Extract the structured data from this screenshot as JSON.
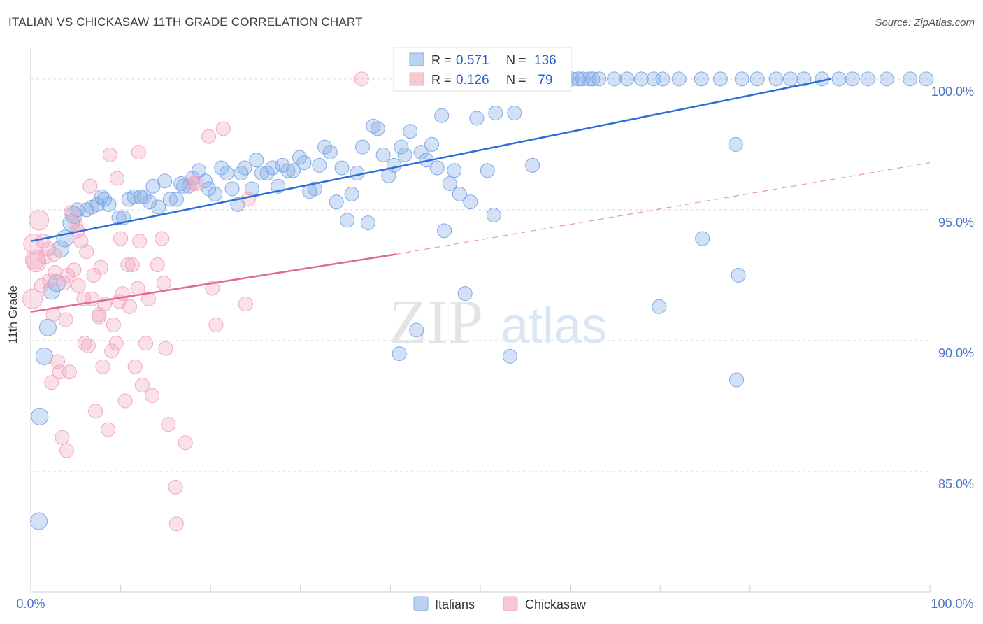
{
  "title": "ITALIAN VS CHICKASAW 11TH GRADE CORRELATION CHART",
  "source": "Source: ZipAtlas.com",
  "watermark": {
    "zip": "ZIP",
    "atlas": "atlas"
  },
  "chart_data": {
    "type": "scatter",
    "ylabel": "11th Grade",
    "xlim": [
      0,
      100
    ],
    "ylim": [
      80.4,
      101.2
    ],
    "x_tick_labels": {
      "left": "0.0%",
      "right": "100.0%"
    },
    "y_ticks": [
      {
        "value": 85,
        "label": "85.0%"
      },
      {
        "value": 90,
        "label": "90.0%"
      },
      {
        "value": 95,
        "label": "95.0%"
      },
      {
        "value": 100,
        "label": "100.0%"
      }
    ],
    "grid": true,
    "legend_position": "top-center",
    "stats": [
      {
        "r_label": "R =",
        "r": "0.571",
        "n_label": "N =",
        "n": "136"
      },
      {
        "r_label": "R =",
        "r": "0.126",
        "n_label": "N =",
        "n": " 79"
      }
    ],
    "series": [
      {
        "name": "Italians",
        "color": "#7fa9e6",
        "line_color": "#2a6fd6",
        "trend": {
          "x0": 0,
          "y0": 93.8,
          "x1": 89,
          "y1": 100.0
        },
        "points": [
          [
            0.9,
            83.1
          ],
          [
            1.0,
            87.1
          ],
          [
            1.5,
            89.4
          ],
          [
            1.9,
            90.5
          ],
          [
            2.3,
            91.9
          ],
          [
            2.9,
            92.2
          ],
          [
            3.3,
            93.5
          ],
          [
            3.8,
            93.9
          ],
          [
            4.5,
            94.5
          ],
          [
            4.8,
            94.8
          ],
          [
            5.2,
            95.0
          ],
          [
            6.2,
            95.0
          ],
          [
            6.8,
            95.1
          ],
          [
            7.4,
            95.2
          ],
          [
            7.9,
            95.5
          ],
          [
            8.2,
            95.4
          ],
          [
            8.7,
            95.2
          ],
          [
            9.8,
            94.7
          ],
          [
            10.3,
            94.7
          ],
          [
            10.9,
            95.4
          ],
          [
            11.5,
            95.5
          ],
          [
            12.2,
            95.5
          ],
          [
            12.6,
            95.5
          ],
          [
            13.2,
            95.3
          ],
          [
            13.6,
            95.9
          ],
          [
            14.2,
            95.1
          ],
          [
            14.9,
            96.1
          ],
          [
            15.5,
            95.4
          ],
          [
            16.2,
            95.4
          ],
          [
            16.7,
            96.0
          ],
          [
            17.0,
            95.9
          ],
          [
            17.6,
            95.9
          ],
          [
            18.0,
            96.2
          ],
          [
            18.7,
            96.5
          ],
          [
            19.4,
            96.1
          ],
          [
            19.8,
            95.8
          ],
          [
            20.5,
            95.6
          ],
          [
            21.2,
            96.6
          ],
          [
            21.8,
            96.4
          ],
          [
            22.4,
            95.8
          ],
          [
            23.0,
            95.2
          ],
          [
            23.4,
            96.4
          ],
          [
            23.8,
            96.6
          ],
          [
            24.6,
            95.8
          ],
          [
            25.1,
            96.9
          ],
          [
            25.7,
            96.4
          ],
          [
            26.3,
            96.4
          ],
          [
            26.9,
            96.6
          ],
          [
            27.5,
            95.9
          ],
          [
            28.0,
            96.7
          ],
          [
            28.6,
            96.5
          ],
          [
            29.2,
            96.5
          ],
          [
            29.9,
            97.0
          ],
          [
            30.4,
            96.8
          ],
          [
            31.0,
            95.7
          ],
          [
            31.6,
            95.8
          ],
          [
            32.1,
            96.7
          ],
          [
            32.7,
            97.4
          ],
          [
            33.3,
            97.2
          ],
          [
            34.0,
            95.3
          ],
          [
            34.6,
            96.6
          ],
          [
            35.2,
            94.6
          ],
          [
            35.7,
            95.6
          ],
          [
            36.3,
            96.4
          ],
          [
            36.9,
            97.4
          ],
          [
            37.5,
            94.5
          ],
          [
            38.1,
            98.2
          ],
          [
            38.6,
            98.1
          ],
          [
            39.2,
            97.1
          ],
          [
            39.8,
            96.3
          ],
          [
            40.4,
            96.7
          ],
          [
            41.0,
            89.5
          ],
          [
            41.6,
            97.1
          ],
          [
            42.2,
            98.0
          ],
          [
            42.9,
            90.4
          ],
          [
            43.4,
            97.2
          ],
          [
            44.0,
            96.9
          ],
          [
            44.6,
            97.5
          ],
          [
            45.2,
            96.6
          ],
          [
            46.0,
            94.2
          ],
          [
            46.6,
            96.0
          ],
          [
            47.1,
            96.5
          ],
          [
            47.7,
            95.6
          ],
          [
            48.3,
            91.8
          ],
          [
            48.9,
            95.3
          ],
          [
            49.6,
            98.5
          ],
          [
            50.1,
            100.0
          ],
          [
            50.8,
            96.5
          ],
          [
            51.5,
            94.8
          ],
          [
            52.1,
            100.0
          ],
          [
            52.6,
            100.0
          ],
          [
            53.3,
            89.4
          ],
          [
            53.8,
            98.7
          ],
          [
            54.4,
            100.0
          ],
          [
            55.1,
            100.0
          ],
          [
            55.8,
            96.7
          ],
          [
            56.4,
            100.0
          ],
          [
            57.1,
            100.0
          ],
          [
            57.7,
            100.0
          ],
          [
            58.3,
            100.0
          ],
          [
            59.0,
            100.0
          ],
          [
            59.6,
            100.0
          ],
          [
            60.2,
            100.0
          ],
          [
            60.9,
            100.0
          ],
          [
            61.4,
            100.0
          ],
          [
            62.1,
            100.0
          ],
          [
            62.5,
            100.0
          ],
          [
            63.2,
            100.0
          ],
          [
            64.9,
            100.0
          ],
          [
            66.3,
            100.0
          ],
          [
            67.9,
            100.0
          ],
          [
            69.3,
            100.0
          ],
          [
            70.3,
            100.0
          ],
          [
            72.1,
            100.0
          ],
          [
            74.6,
            100.0
          ],
          [
            76.7,
            100.0
          ],
          [
            78.4,
            97.5
          ],
          [
            79.1,
            100.0
          ],
          [
            80.8,
            100.0
          ],
          [
            82.9,
            100.0
          ],
          [
            84.5,
            100.0
          ],
          [
            86.0,
            100.0
          ],
          [
            88.0,
            100.0
          ],
          [
            89.9,
            100.0
          ],
          [
            91.4,
            100.0
          ],
          [
            93.1,
            100.0
          ],
          [
            95.2,
            100.0
          ],
          [
            97.8,
            100.0
          ],
          [
            99.6,
            100.0
          ],
          [
            74.7,
            93.9
          ],
          [
            78.7,
            92.5
          ],
          [
            69.9,
            91.3
          ],
          [
            78.5,
            88.5
          ],
          [
            45.7,
            98.6
          ],
          [
            51.7,
            98.7
          ],
          [
            41.2,
            97.4
          ]
        ]
      },
      {
        "name": "Chickasaw",
        "color": "#f2a6bf",
        "line_color": "#e0689a",
        "trend": {
          "x0": 0,
          "y0": 91.1,
          "x1": 40.6,
          "y1": 93.3
        },
        "trend_ext": {
          "x0": 40.6,
          "y0": 93.3,
          "x1": 100,
          "y1": 96.8
        },
        "points": [
          [
            0.2,
            91.6
          ],
          [
            0.3,
            93.7
          ],
          [
            0.5,
            93.1
          ],
          [
            0.6,
            93.0
          ],
          [
            0.9,
            94.6
          ],
          [
            1.2,
            92.1
          ],
          [
            1.4,
            93.8
          ],
          [
            1.6,
            93.2
          ],
          [
            2.0,
            93.5
          ],
          [
            2.1,
            92.3
          ],
          [
            2.3,
            88.4
          ],
          [
            2.5,
            91.0
          ],
          [
            2.6,
            93.3
          ],
          [
            2.7,
            92.6
          ],
          [
            3.0,
            89.2
          ],
          [
            3.2,
            88.8
          ],
          [
            3.5,
            86.3
          ],
          [
            3.7,
            92.2
          ],
          [
            3.9,
            90.8
          ],
          [
            4.0,
            85.8
          ],
          [
            4.1,
            92.5
          ],
          [
            4.3,
            88.8
          ],
          [
            4.5,
            94.9
          ],
          [
            4.8,
            92.7
          ],
          [
            5.0,
            94.4
          ],
          [
            5.3,
            92.1
          ],
          [
            5.6,
            93.8
          ],
          [
            5.9,
            91.6
          ],
          [
            6.0,
            89.9
          ],
          [
            6.2,
            93.4
          ],
          [
            6.4,
            89.8
          ],
          [
            6.6,
            95.9
          ],
          [
            6.8,
            91.6
          ],
          [
            7.0,
            92.5
          ],
          [
            7.2,
            87.3
          ],
          [
            7.6,
            90.9
          ],
          [
            7.8,
            92.8
          ],
          [
            8.0,
            89.0
          ],
          [
            8.2,
            91.4
          ],
          [
            8.6,
            86.6
          ],
          [
            8.8,
            97.1
          ],
          [
            9.0,
            89.6
          ],
          [
            9.2,
            90.6
          ],
          [
            9.5,
            89.9
          ],
          [
            9.8,
            91.5
          ],
          [
            10.0,
            93.9
          ],
          [
            10.2,
            91.8
          ],
          [
            10.5,
            87.7
          ],
          [
            10.8,
            92.9
          ],
          [
            11.0,
            91.3
          ],
          [
            11.3,
            92.9
          ],
          [
            11.6,
            89.0
          ],
          [
            11.9,
            92.0
          ],
          [
            12.1,
            93.8
          ],
          [
            12.4,
            88.3
          ],
          [
            12.8,
            89.9
          ],
          [
            13.1,
            91.6
          ],
          [
            13.5,
            87.9
          ],
          [
            14.1,
            92.9
          ],
          [
            14.6,
            93.9
          ],
          [
            15.0,
            89.7
          ],
          [
            15.3,
            86.8
          ],
          [
            16.1,
            84.4
          ],
          [
            16.2,
            83.0
          ],
          [
            17.2,
            86.1
          ],
          [
            18.4,
            96.0
          ],
          [
            19.8,
            97.8
          ],
          [
            20.2,
            92.0
          ],
          [
            20.6,
            90.6
          ],
          [
            21.4,
            98.1
          ],
          [
            23.9,
            91.4
          ],
          [
            24.2,
            95.4
          ],
          [
            36.8,
            100.0
          ],
          [
            5.2,
            94.2
          ],
          [
            7.6,
            91.0
          ],
          [
            9.6,
            96.2
          ],
          [
            12.0,
            97.2
          ],
          [
            18.0,
            96.0
          ],
          [
            14.8,
            92.2
          ]
        ]
      }
    ]
  }
}
